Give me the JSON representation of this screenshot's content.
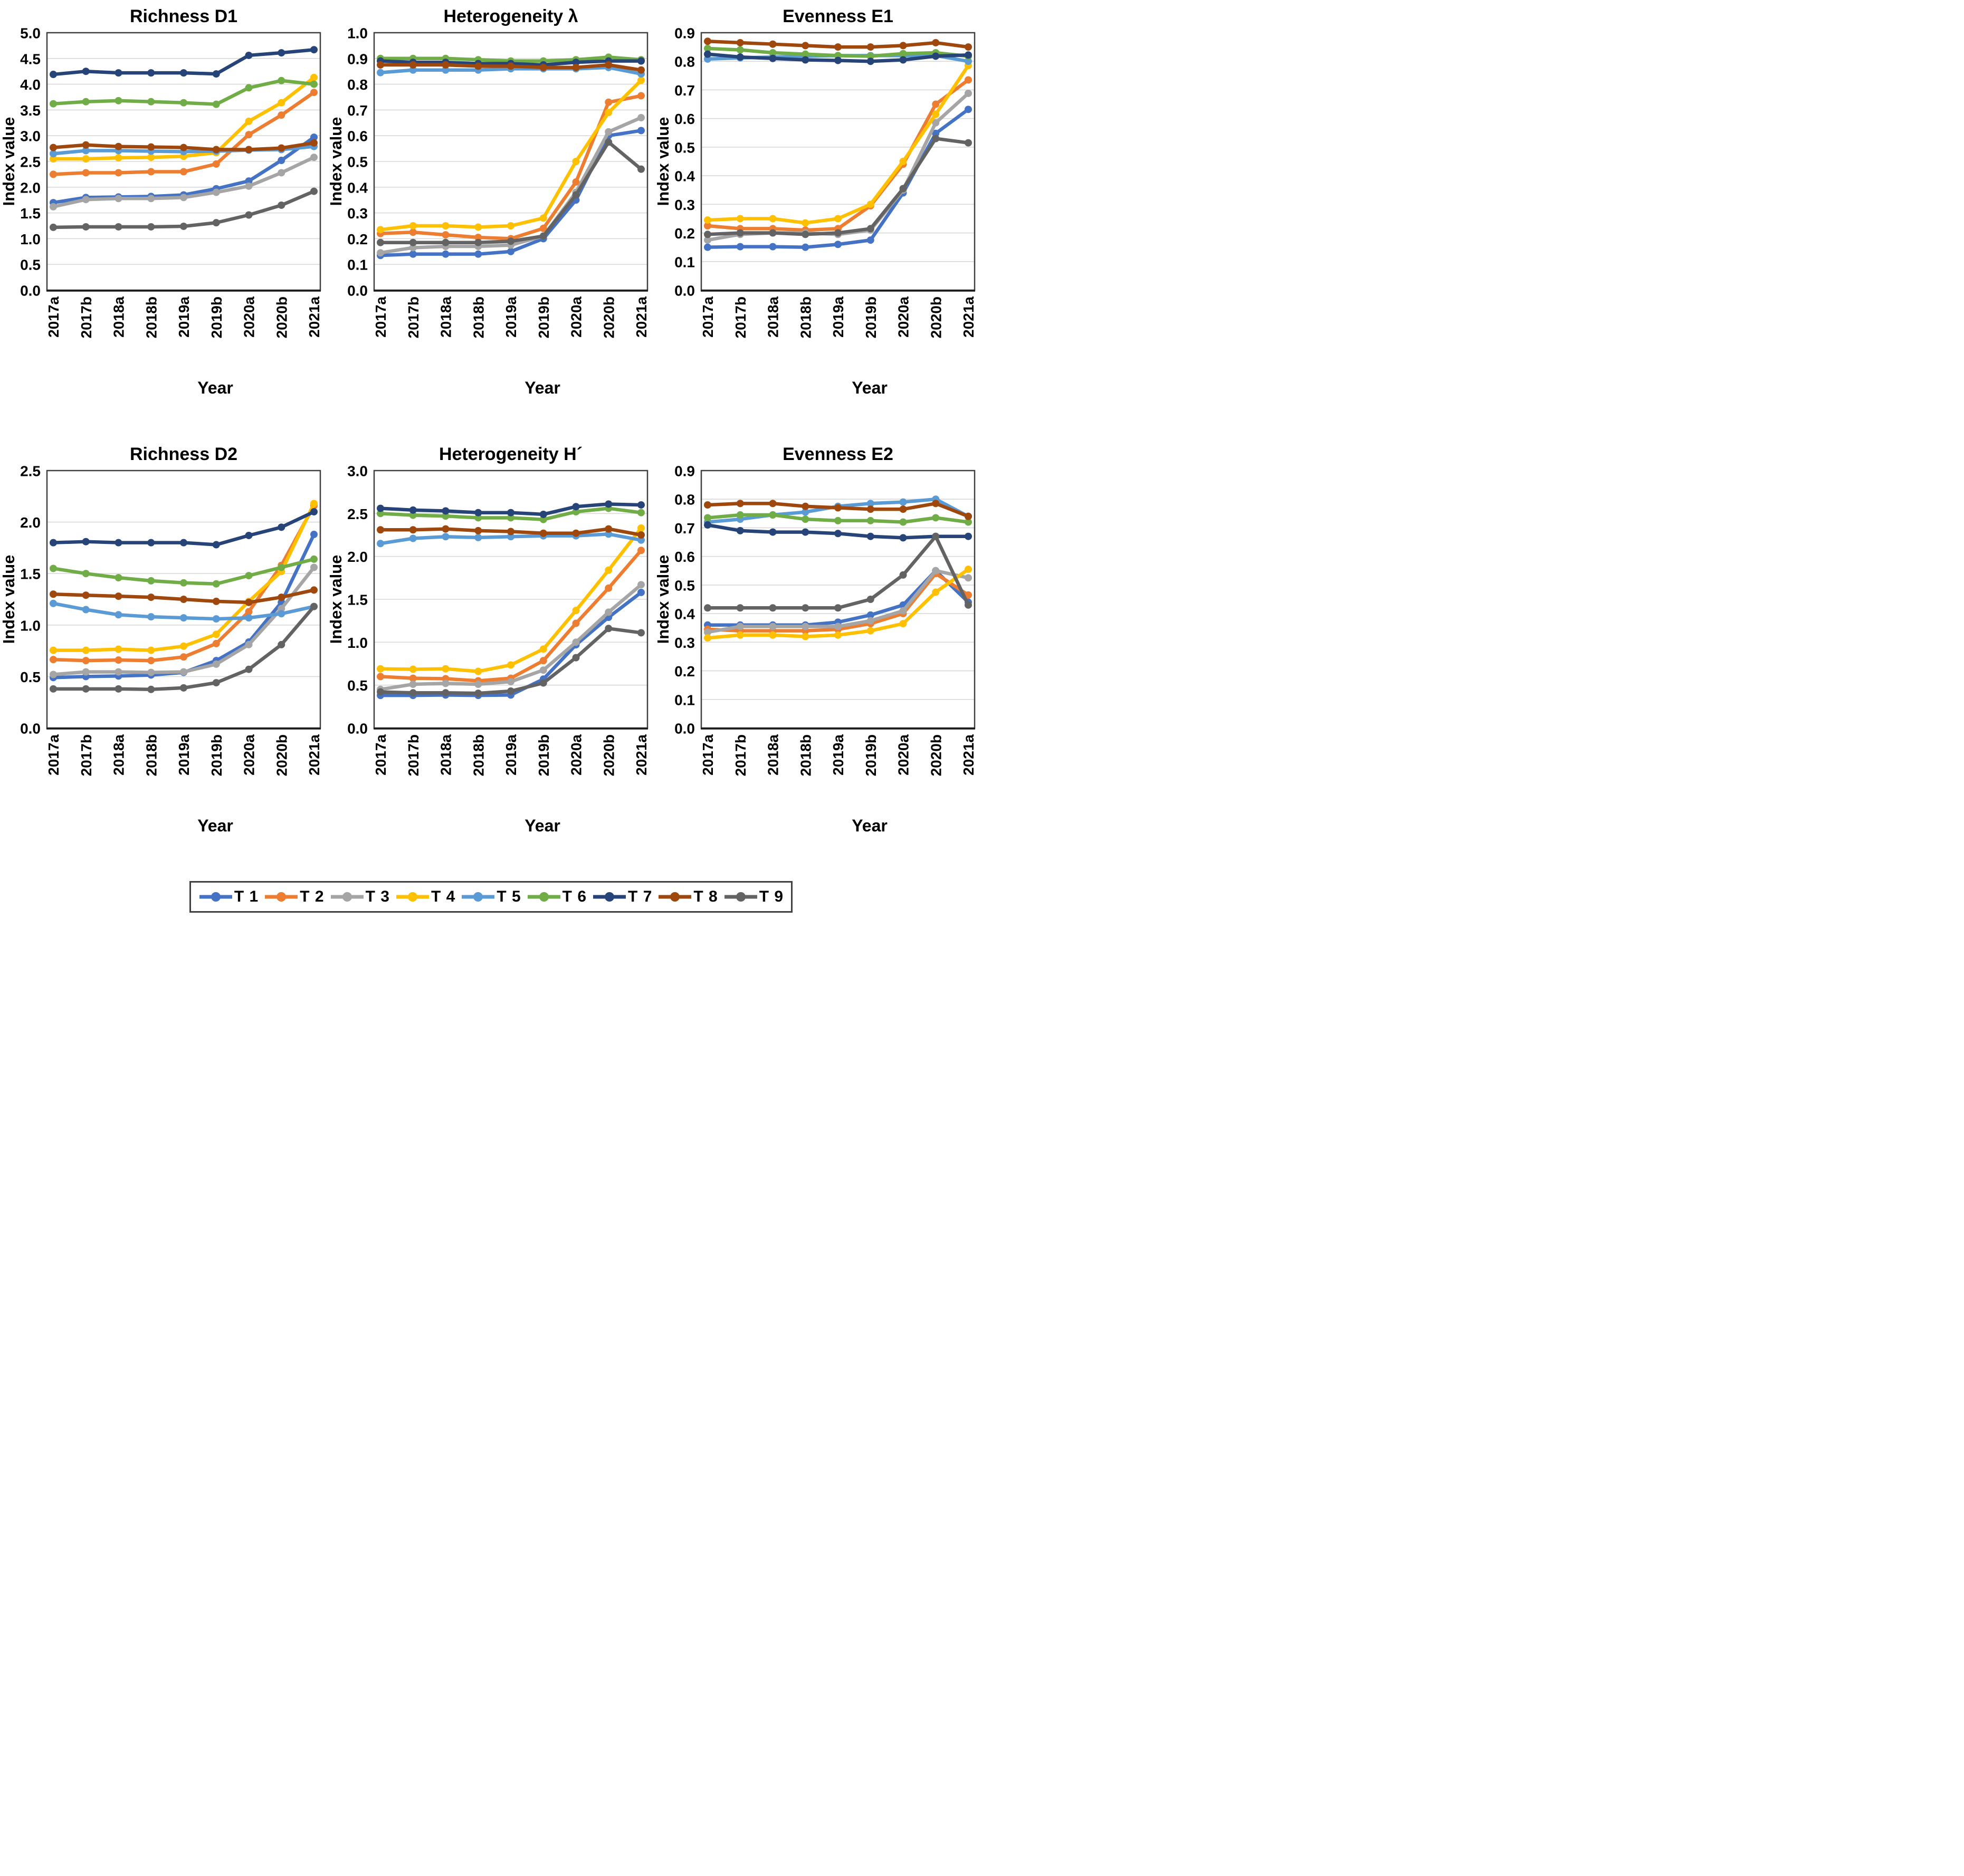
{
  "axis": {
    "x_title": "Year",
    "y_title": "Index value"
  },
  "style": {
    "gridline_color": "#d9d9d9",
    "frame_color": "#404040",
    "text_color": "#000000",
    "background": "#ffffff"
  },
  "legend": {
    "position": "bottom",
    "entries": [
      {
        "label": "T 1",
        "color": "#4472C4"
      },
      {
        "label": "T 2",
        "color": "#ED7D31"
      },
      {
        "label": "T 3",
        "color": "#A5A5A5"
      },
      {
        "label": "T 4",
        "color": "#FFC000"
      },
      {
        "label": "T 5",
        "color": "#5B9BD5"
      },
      {
        "label": "T 6",
        "color": "#70AD47"
      },
      {
        "label": "T 7",
        "color": "#264478"
      },
      {
        "label": "T 8",
        "color": "#9E480E"
      },
      {
        "label": "T 9",
        "color": "#636363"
      }
    ]
  },
  "chart_data": [
    {
      "type": "line",
      "title": "Richness D1",
      "xlabel": "Year",
      "ylabel": "Index value",
      "ylim": [
        0,
        5
      ],
      "ytick_step": 0.5,
      "ydecimals": 1,
      "grid": true,
      "categories": [
        "2017a",
        "2017b",
        "2018a",
        "2018b",
        "2019a",
        "2019b",
        "2020a",
        "2020b",
        "2021a"
      ],
      "series": [
        {
          "name": "T 1",
          "color": "#4472C4",
          "values": [
            1.7,
            1.8,
            1.81,
            1.82,
            1.85,
            1.97,
            2.12,
            2.52,
            2.97
          ]
        },
        {
          "name": "T 2",
          "color": "#ED7D31",
          "values": [
            2.25,
            2.28,
            2.28,
            2.3,
            2.3,
            2.45,
            3.02,
            3.4,
            3.84
          ]
        },
        {
          "name": "T 3",
          "color": "#A5A5A5",
          "values": [
            1.62,
            1.76,
            1.78,
            1.78,
            1.8,
            1.9,
            2.02,
            2.28,
            2.58
          ]
        },
        {
          "name": "T 4",
          "color": "#FFC000",
          "values": [
            2.55,
            2.55,
            2.57,
            2.58,
            2.6,
            2.67,
            3.28,
            3.64,
            4.13
          ]
        },
        {
          "name": "T 5",
          "color": "#5B9BD5",
          "values": [
            2.65,
            2.71,
            2.71,
            2.7,
            2.69,
            2.7,
            2.72,
            2.73,
            2.79
          ]
        },
        {
          "name": "T 6",
          "color": "#70AD47",
          "values": [
            3.62,
            3.66,
            3.68,
            3.66,
            3.64,
            3.61,
            3.93,
            4.07,
            4.0
          ]
        },
        {
          "name": "T 7",
          "color": "#264478",
          "values": [
            4.19,
            4.25,
            4.22,
            4.22,
            4.22,
            4.2,
            4.56,
            4.61,
            4.67
          ]
        },
        {
          "name": "T 8",
          "color": "#9E480E",
          "values": [
            2.77,
            2.82,
            2.79,
            2.78,
            2.77,
            2.73,
            2.73,
            2.76,
            2.86
          ]
        },
        {
          "name": "T 9",
          "color": "#636363",
          "values": [
            1.22,
            1.23,
            1.23,
            1.23,
            1.24,
            1.31,
            1.46,
            1.65,
            1.92
          ]
        }
      ]
    },
    {
      "type": "line",
      "title": "Heterogeneity λ",
      "xlabel": "Year",
      "ylabel": "Index value",
      "ylim": [
        0,
        1
      ],
      "ytick_step": 0.1,
      "ydecimals": 1,
      "grid": true,
      "categories": [
        "2017a",
        "2017b",
        "2018a",
        "2018b",
        "2019a",
        "2019b",
        "2020a",
        "2020b",
        "2021a"
      ],
      "series": [
        {
          "name": "T 1",
          "color": "#4472C4",
          "values": [
            0.135,
            0.14,
            0.14,
            0.14,
            0.15,
            0.2,
            0.35,
            0.6,
            0.62
          ]
        },
        {
          "name": "T 2",
          "color": "#ED7D31",
          "values": [
            0.22,
            0.225,
            0.215,
            0.205,
            0.2,
            0.24,
            0.42,
            0.73,
            0.755
          ]
        },
        {
          "name": "T 3",
          "color": "#A5A5A5",
          "values": [
            0.145,
            0.165,
            0.17,
            0.17,
            0.175,
            0.21,
            0.38,
            0.615,
            0.67
          ]
        },
        {
          "name": "T 4",
          "color": "#FFC000",
          "values": [
            0.235,
            0.25,
            0.25,
            0.245,
            0.25,
            0.28,
            0.5,
            0.69,
            0.815
          ]
        },
        {
          "name": "T 5",
          "color": "#5B9BD5",
          "values": [
            0.845,
            0.855,
            0.855,
            0.855,
            0.86,
            0.86,
            0.86,
            0.865,
            0.84
          ]
        },
        {
          "name": "T 6",
          "color": "#70AD47",
          "values": [
            0.9,
            0.9,
            0.9,
            0.895,
            0.89,
            0.89,
            0.895,
            0.905,
            0.895
          ]
        },
        {
          "name": "T 7",
          "color": "#264478",
          "values": [
            0.89,
            0.885,
            0.885,
            0.88,
            0.88,
            0.875,
            0.885,
            0.89,
            0.89
          ]
        },
        {
          "name": "T 8",
          "color": "#9E480E",
          "values": [
            0.875,
            0.875,
            0.875,
            0.87,
            0.87,
            0.865,
            0.865,
            0.875,
            0.855
          ]
        },
        {
          "name": "T 9",
          "color": "#636363",
          "values": [
            0.185,
            0.185,
            0.185,
            0.185,
            0.19,
            0.21,
            0.37,
            0.575,
            0.47
          ]
        }
      ]
    },
    {
      "type": "line",
      "title": "Evenness E1",
      "xlabel": "Year",
      "ylabel": "Index value",
      "ylim": [
        0,
        0.9
      ],
      "ytick_step": 0.1,
      "ydecimals": 1,
      "grid": true,
      "categories": [
        "2017a",
        "2017b",
        "2018a",
        "2018b",
        "2019a",
        "2019b",
        "2020a",
        "2020b",
        "2021a"
      ],
      "series": [
        {
          "name": "T 1",
          "color": "#4472C4",
          "values": [
            0.15,
            0.152,
            0.152,
            0.15,
            0.16,
            0.175,
            0.34,
            0.548,
            0.632
          ]
        },
        {
          "name": "T 2",
          "color": "#ED7D31",
          "values": [
            0.225,
            0.215,
            0.215,
            0.21,
            0.215,
            0.295,
            0.44,
            0.65,
            0.735
          ]
        },
        {
          "name": "T 3",
          "color": "#A5A5A5",
          "values": [
            0.175,
            0.195,
            0.2,
            0.2,
            0.195,
            0.21,
            0.35,
            0.585,
            0.688
          ]
        },
        {
          "name": "T 4",
          "color": "#FFC000",
          "values": [
            0.245,
            0.25,
            0.25,
            0.235,
            0.25,
            0.3,
            0.45,
            0.615,
            0.785
          ]
        },
        {
          "name": "T 5",
          "color": "#5B9BD5",
          "values": [
            0.808,
            0.812,
            0.815,
            0.818,
            0.82,
            0.82,
            0.82,
            0.82,
            0.8
          ]
        },
        {
          "name": "T 6",
          "color": "#70AD47",
          "values": [
            0.845,
            0.84,
            0.83,
            0.825,
            0.82,
            0.818,
            0.827,
            0.83,
            0.818
          ]
        },
        {
          "name": "T 7",
          "color": "#264478",
          "values": [
            0.825,
            0.815,
            0.81,
            0.805,
            0.803,
            0.8,
            0.805,
            0.818,
            0.822
          ]
        },
        {
          "name": "T 8",
          "color": "#9E480E",
          "values": [
            0.87,
            0.865,
            0.86,
            0.855,
            0.85,
            0.85,
            0.855,
            0.865,
            0.85
          ]
        },
        {
          "name": "T 9",
          "color": "#636363",
          "values": [
            0.195,
            0.2,
            0.2,
            0.195,
            0.2,
            0.215,
            0.355,
            0.53,
            0.515
          ]
        }
      ]
    },
    {
      "type": "line",
      "title": "Richness D2",
      "xlabel": "Year",
      "ylabel": "Index value",
      "ylim": [
        0,
        2.5
      ],
      "ytick_step": 0.5,
      "ydecimals": 1,
      "grid": true,
      "categories": [
        "2017a",
        "2017b",
        "2018a",
        "2018b",
        "2019a",
        "2019b",
        "2020a",
        "2020b",
        "2021a"
      ],
      "series": [
        {
          "name": "T 1",
          "color": "#4472C4",
          "values": [
            0.49,
            0.5,
            0.505,
            0.515,
            0.54,
            0.655,
            0.835,
            1.22,
            1.88
          ]
        },
        {
          "name": "T 2",
          "color": "#ED7D31",
          "values": [
            0.665,
            0.655,
            0.66,
            0.655,
            0.69,
            0.82,
            1.13,
            1.58,
            2.16
          ]
        },
        {
          "name": "T 3",
          "color": "#A5A5A5",
          "values": [
            0.52,
            0.545,
            0.545,
            0.54,
            0.545,
            0.62,
            0.81,
            1.16,
            1.56
          ]
        },
        {
          "name": "T 4",
          "color": "#FFC000",
          "values": [
            0.755,
            0.755,
            0.765,
            0.755,
            0.795,
            0.91,
            1.23,
            1.52,
            2.18
          ]
        },
        {
          "name": "T 5",
          "color": "#5B9BD5",
          "values": [
            1.21,
            1.15,
            1.1,
            1.08,
            1.07,
            1.06,
            1.07,
            1.11,
            1.18
          ]
        },
        {
          "name": "T 6",
          "color": "#70AD47",
          "values": [
            1.55,
            1.5,
            1.46,
            1.43,
            1.41,
            1.4,
            1.48,
            1.56,
            1.64
          ]
        },
        {
          "name": "T 7",
          "color": "#264478",
          "values": [
            1.8,
            1.81,
            1.8,
            1.8,
            1.8,
            1.78,
            1.87,
            1.95,
            2.1
          ]
        },
        {
          "name": "T 8",
          "color": "#9E480E",
          "values": [
            1.3,
            1.29,
            1.28,
            1.27,
            1.25,
            1.23,
            1.22,
            1.27,
            1.34
          ]
        },
        {
          "name": "T 9",
          "color": "#636363",
          "values": [
            0.38,
            0.38,
            0.38,
            0.375,
            0.39,
            0.44,
            0.57,
            0.81,
            1.18
          ]
        }
      ]
    },
    {
      "type": "line",
      "title": "Heterogeneity H´",
      "xlabel": "Year",
      "ylabel": "Index value",
      "ylim": [
        0,
        3
      ],
      "ytick_step": 0.5,
      "ydecimals": 1,
      "grid": true,
      "categories": [
        "2017a",
        "2017b",
        "2018a",
        "2018b",
        "2019a",
        "2019b",
        "2020a",
        "2020b",
        "2021a"
      ],
      "series": [
        {
          "name": "T 1",
          "color": "#4472C4",
          "values": [
            0.38,
            0.38,
            0.385,
            0.38,
            0.385,
            0.57,
            0.97,
            1.29,
            1.58
          ]
        },
        {
          "name": "T 2",
          "color": "#ED7D31",
          "values": [
            0.6,
            0.58,
            0.575,
            0.55,
            0.58,
            0.785,
            1.22,
            1.63,
            2.07
          ]
        },
        {
          "name": "T 3",
          "color": "#A5A5A5",
          "values": [
            0.45,
            0.51,
            0.52,
            0.51,
            0.54,
            0.675,
            1.0,
            1.35,
            1.67
          ]
        },
        {
          "name": "T 4",
          "color": "#FFC000",
          "values": [
            0.69,
            0.685,
            0.69,
            0.66,
            0.735,
            0.92,
            1.37,
            1.84,
            2.33
          ]
        },
        {
          "name": "T 5",
          "color": "#5B9BD5",
          "values": [
            2.15,
            2.21,
            2.23,
            2.22,
            2.23,
            2.24,
            2.24,
            2.26,
            2.19
          ]
        },
        {
          "name": "T 6",
          "color": "#70AD47",
          "values": [
            2.5,
            2.48,
            2.47,
            2.45,
            2.45,
            2.43,
            2.52,
            2.56,
            2.51
          ]
        },
        {
          "name": "T 7",
          "color": "#264478",
          "values": [
            2.56,
            2.54,
            2.53,
            2.51,
            2.51,
            2.49,
            2.58,
            2.61,
            2.6
          ]
        },
        {
          "name": "T 8",
          "color": "#9E480E",
          "values": [
            2.31,
            2.31,
            2.32,
            2.3,
            2.29,
            2.27,
            2.27,
            2.32,
            2.25
          ]
        },
        {
          "name": "T 9",
          "color": "#636363",
          "values": [
            0.42,
            0.41,
            0.41,
            0.405,
            0.43,
            0.525,
            0.82,
            1.16,
            1.11
          ]
        }
      ]
    },
    {
      "type": "line",
      "title": "Evenness E2",
      "xlabel": "Year",
      "ylabel": "Index value",
      "ylim": [
        0,
        0.9
      ],
      "ytick_step": 0.1,
      "ydecimals": 1,
      "grid": true,
      "categories": [
        "2017a",
        "2017b",
        "2018a",
        "2018b",
        "2019a",
        "2019b",
        "2020a",
        "2020b",
        "2021a"
      ],
      "series": [
        {
          "name": "T 1",
          "color": "#4472C4",
          "values": [
            0.36,
            0.36,
            0.36,
            0.36,
            0.37,
            0.395,
            0.43,
            0.55,
            0.44
          ]
        },
        {
          "name": "T 2",
          "color": "#ED7D31",
          "values": [
            0.345,
            0.34,
            0.34,
            0.34,
            0.345,
            0.365,
            0.4,
            0.54,
            0.465
          ]
        },
        {
          "name": "T 3",
          "color": "#A5A5A5",
          "values": [
            0.335,
            0.355,
            0.355,
            0.355,
            0.355,
            0.375,
            0.41,
            0.55,
            0.525
          ]
        },
        {
          "name": "T 4",
          "color": "#FFC000",
          "values": [
            0.315,
            0.325,
            0.325,
            0.32,
            0.325,
            0.34,
            0.365,
            0.475,
            0.555
          ]
        },
        {
          "name": "T 5",
          "color": "#5B9BD5",
          "values": [
            0.72,
            0.73,
            0.745,
            0.755,
            0.775,
            0.785,
            0.79,
            0.8,
            0.74
          ]
        },
        {
          "name": "T 6",
          "color": "#70AD47",
          "values": [
            0.735,
            0.745,
            0.745,
            0.73,
            0.725,
            0.725,
            0.72,
            0.735,
            0.72
          ]
        },
        {
          "name": "T 7",
          "color": "#264478",
          "values": [
            0.71,
            0.69,
            0.685,
            0.685,
            0.68,
            0.67,
            0.665,
            0.67,
            0.67
          ]
        },
        {
          "name": "T 8",
          "color": "#9E480E",
          "values": [
            0.78,
            0.785,
            0.785,
            0.775,
            0.77,
            0.765,
            0.765,
            0.785,
            0.74
          ]
        },
        {
          "name": "T 9",
          "color": "#636363",
          "values": [
            0.42,
            0.42,
            0.42,
            0.42,
            0.42,
            0.45,
            0.535,
            0.67,
            0.43
          ]
        }
      ]
    }
  ]
}
